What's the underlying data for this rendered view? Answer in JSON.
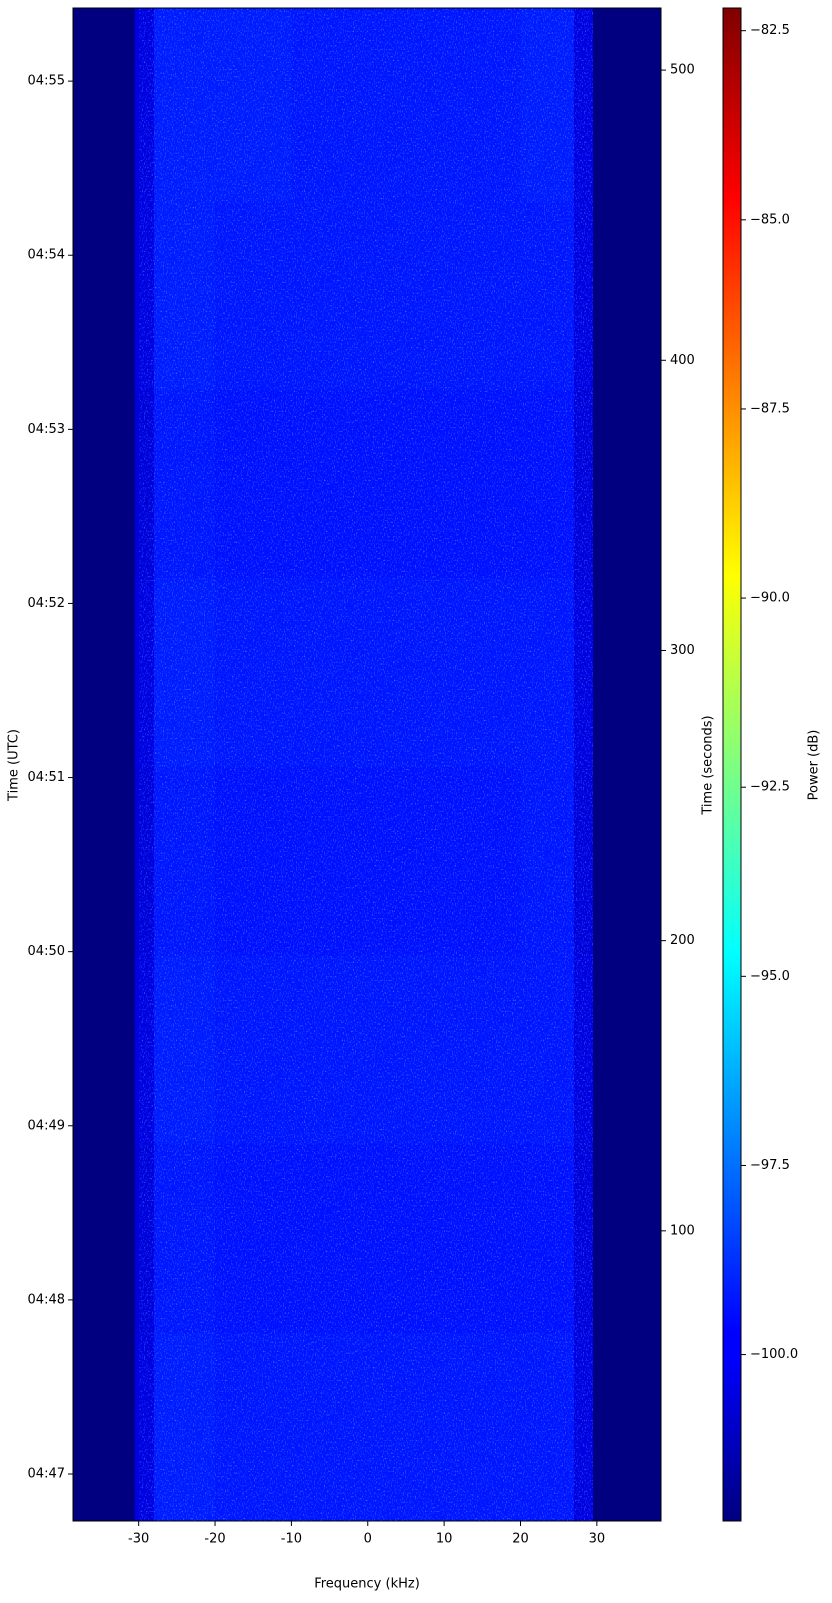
{
  "chart_data": {
    "type": "heatmap",
    "xlabel": "Frequency (kHz)",
    "ylabel": "Time (UTC)",
    "y2label": "Time (seconds)",
    "colorbar_label": "Power (dB)",
    "colormap": "jet",
    "xlim": [
      -38.6,
      38.4
    ],
    "ylim": [
      0,
      521.4
    ],
    "xticks": [
      -30,
      -20,
      -10,
      0,
      10,
      20,
      30
    ],
    "yticks": [
      {
        "value": 16.2,
        "label": "04:47"
      },
      {
        "value": 76.2,
        "label": "04:48"
      },
      {
        "value": 136.2,
        "label": "04:49"
      },
      {
        "value": 196.2,
        "label": "04:50"
      },
      {
        "value": 256.2,
        "label": "04:51"
      },
      {
        "value": 316.2,
        "label": "04:52"
      },
      {
        "value": 376.2,
        "label": "04:53"
      },
      {
        "value": 436.2,
        "label": "04:54"
      },
      {
        "value": 496.2,
        "label": "04:55"
      }
    ],
    "y2lim": [
      0,
      521.4
    ],
    "y2ticks": [
      100,
      200,
      300,
      400,
      500
    ],
    "clim": [
      -102.2,
      -82.2
    ],
    "cticks": [
      {
        "value": -100,
        "label": "-100.0"
      },
      -97.5,
      {
        "value": -95,
        "label": "-95.0"
      },
      -92.5,
      {
        "value": -90,
        "label": "-90.0"
      },
      -87.5,
      {
        "value": -85,
        "label": "-85.0"
      },
      -82.5
    ],
    "x_edges": [
      -38.6,
      -30.5,
      -28,
      -20,
      -10,
      0,
      10,
      20,
      27,
      29.5,
      38.4
    ],
    "y_edges": [
      0,
      65,
      130,
      195,
      260,
      325,
      390,
      455,
      521.4
    ],
    "values": [
      [
        -102.2,
        -100.3,
        -99.2,
        -99.3,
        -99.3,
        -99.3,
        -99.3,
        -99.3,
        -100.3,
        -102.2
      ],
      [
        -102.2,
        -100.4,
        -99.3,
        -99.4,
        -99.4,
        -99.4,
        -99.4,
        -99.4,
        -100.4,
        -102.2
      ],
      [
        -102.2,
        -100.3,
        -99.2,
        -99.3,
        -99.3,
        -99.3,
        -99.3,
        -99.3,
        -100.3,
        -102.2
      ],
      [
        -102.2,
        -100.4,
        -99.3,
        -99.4,
        -99.4,
        -99.4,
        -99.4,
        -99.3,
        -100.4,
        -102.2
      ],
      [
        -102.2,
        -100.3,
        -99.2,
        -99.3,
        -99.3,
        -99.3,
        -99.3,
        -99.3,
        -100.3,
        -102.2
      ],
      [
        -102.2,
        -100.4,
        -99.3,
        -99.4,
        -99.4,
        -99.4,
        -99.4,
        -99.4,
        -100.4,
        -102.2
      ],
      [
        -102.2,
        -100.3,
        -99.2,
        -99.3,
        -99.3,
        -99.3,
        -99.3,
        -99.3,
        -100.3,
        -102.2
      ],
      [
        -102.2,
        -100.3,
        -99.2,
        -99.2,
        -99.3,
        -99.3,
        -99.3,
        -99.2,
        -100.3,
        -102.2
      ]
    ]
  }
}
